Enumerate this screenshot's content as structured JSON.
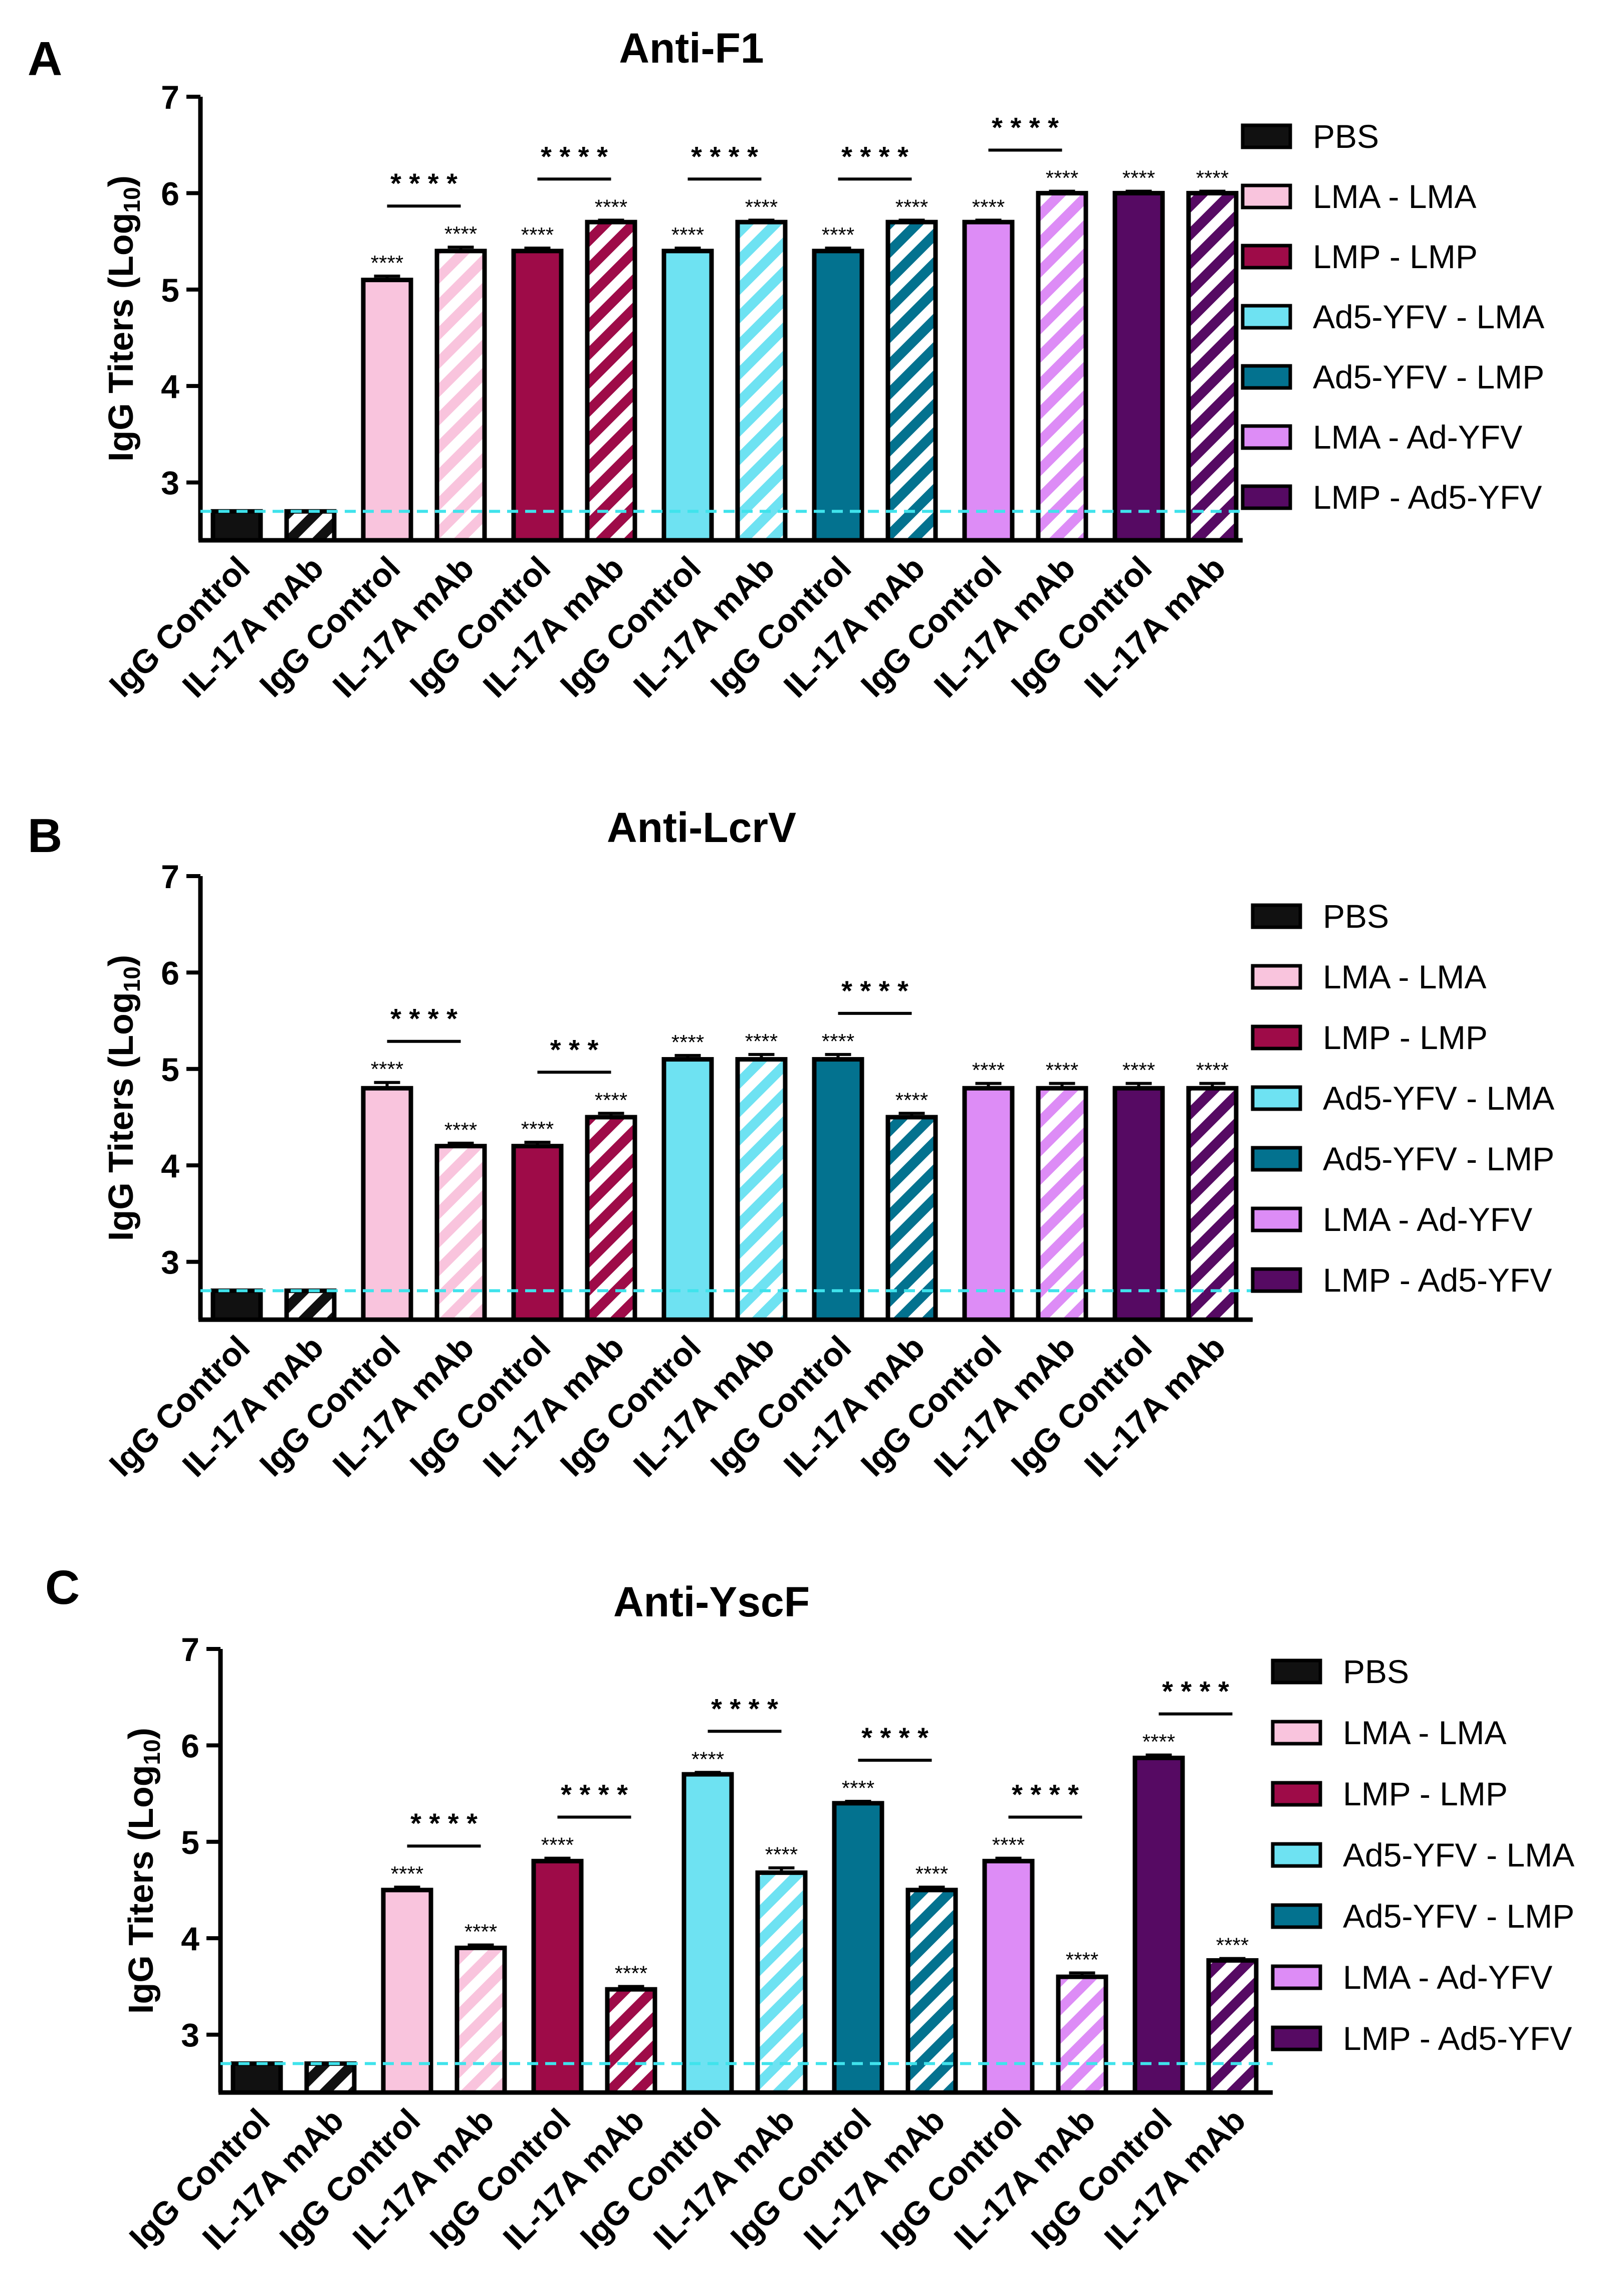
{
  "colors": {
    "pbs": "#111111",
    "lma_lma": "#f9c4dd",
    "lmp_lmp": "#9e0b48",
    "ad5_lma": "#6ee2f2",
    "ad5_lmp": "#03728f",
    "lma_ad": "#dd8cf6",
    "lmp_ad5": "#560a63",
    "limit_line": "#3fe3ec"
  },
  "legend_entries": [
    "PBS",
    "LMA - LMA",
    "LMP - LMP",
    "Ad5-YFV - LMA",
    "Ad5-YFV - LMP",
    "LMA - Ad-YFV",
    "LMP - Ad5-YFV"
  ],
  "categories": [
    "IgG Control",
    "IL-17A mAb",
    "IgG Control",
    "IL-17A mAb",
    "IgG Control",
    "IL-17A mAb",
    "IgG Control",
    "IL-17A mAb",
    "IgG Control",
    "IL-17A mAb",
    "IgG Control",
    "IL-17A mAb",
    "IgG Control",
    "IL-17A mAb"
  ],
  "chart_data": [
    {
      "type": "bar",
      "panel": "A",
      "title": "Anti-F1",
      "ylabel_main": "IgG Titers (Log",
      "ylabel_sub": "10",
      "ylabel_close": ")",
      "ylim": [
        2.4,
        7
      ],
      "yticks": [
        "3",
        "4",
        "5",
        "6",
        "7"
      ],
      "detection_limit": 2.7,
      "groups": [
        "PBS",
        "LMA - LMA",
        "LMP - LMP",
        "Ad5-YFV - LMA",
        "Ad5-YFV - LMP",
        "LMA - Ad-YFV",
        "LMP - Ad5-YFV"
      ],
      "series": [
        {
          "name": "IgG Control",
          "values": [
            2.7,
            5.1,
            5.4,
            5.4,
            5.4,
            5.7,
            6.0
          ],
          "errors": [
            0,
            0.04,
            0.03,
            0.03,
            0.03,
            0.02,
            0.02
          ]
        },
        {
          "name": "IL-17A mAb",
          "values": [
            2.7,
            5.4,
            5.7,
            5.7,
            5.7,
            6.0,
            6.0
          ],
          "errors": [
            0,
            0.04,
            0.02,
            0.02,
            0.02,
            0.02,
            0.02
          ]
        }
      ],
      "bar_stars": [
        [
          "",
          ""
        ],
        [
          "****",
          "****"
        ],
        [
          "****",
          "****"
        ],
        [
          "****",
          "****"
        ],
        [
          "****",
          "****"
        ],
        [
          "****",
          "****"
        ],
        [
          "****",
          "****"
        ]
      ],
      "comparisons": [
        {
          "group": 1,
          "label": "* * * *"
        },
        {
          "group": 2,
          "label": "* * * *"
        },
        {
          "group": 3,
          "label": "* * * *"
        },
        {
          "group": 4,
          "label": "* * * *"
        },
        {
          "group": 5,
          "label": "* * * *"
        }
      ]
    },
    {
      "type": "bar",
      "panel": "B",
      "title": "Anti-LcrV",
      "ylabel_main": "IgG Titers (Log",
      "ylabel_sub": "10",
      "ylabel_close": ")",
      "ylim": [
        2.4,
        7
      ],
      "yticks": [
        "3",
        "4",
        "5",
        "6",
        "7"
      ],
      "detection_limit": 2.7,
      "groups": [
        "PBS",
        "LMA - LMA",
        "LMP - LMP",
        "Ad5-YFV - LMA",
        "Ad5-YFV - LMP",
        "LMA - Ad-YFV",
        "LMP - Ad5-YFV"
      ],
      "series": [
        {
          "name": "IgG Control",
          "values": [
            2.7,
            4.8,
            4.2,
            5.1,
            5.1,
            4.8,
            4.8
          ],
          "errors": [
            0,
            0.06,
            0.04,
            0.04,
            0.05,
            0.05,
            0.05
          ]
        },
        {
          "name": "IL-17A mAb",
          "values": [
            2.7,
            4.2,
            4.5,
            5.1,
            4.5,
            4.8,
            4.8
          ],
          "errors": [
            0,
            0.03,
            0.04,
            0.05,
            0.04,
            0.05,
            0.05
          ]
        }
      ],
      "bar_stars": [
        [
          "",
          ""
        ],
        [
          "****",
          "****"
        ],
        [
          "****",
          "****"
        ],
        [
          "****",
          "****"
        ],
        [
          "****",
          "****"
        ],
        [
          "****",
          "****"
        ],
        [
          "****",
          "****"
        ]
      ],
      "comparisons": [
        {
          "group": 1,
          "label": "* * * *"
        },
        {
          "group": 2,
          "label": "* * *"
        },
        {
          "group": 4,
          "label": "* * * *"
        }
      ]
    },
    {
      "type": "bar",
      "panel": "C",
      "title": "Anti-YscF",
      "ylabel_main": "IgG Titers (Log",
      "ylabel_sub": "10",
      "ylabel_close": ")",
      "ylim": [
        2.4,
        7
      ],
      "yticks": [
        "3",
        "4",
        "5",
        "6",
        "7"
      ],
      "detection_limit": 2.7,
      "groups": [
        "PBS",
        "LMA - LMA",
        "LMP - LMP",
        "Ad5-YFV - LMA",
        "Ad5-YFV - LMP",
        "LMA - Ad-YFV",
        "LMP - Ad5-YFV"
      ],
      "series": [
        {
          "name": "IgG Control",
          "values": [
            2.7,
            4.5,
            4.8,
            5.7,
            5.4,
            4.8,
            5.87
          ],
          "errors": [
            0,
            0.03,
            0.03,
            0.02,
            0.02,
            0.03,
            0.03
          ]
        },
        {
          "name": "IL-17A mAb",
          "values": [
            2.7,
            3.9,
            3.47,
            4.68,
            4.5,
            3.6,
            3.77
          ],
          "errors": [
            0,
            0.03,
            0.03,
            0.05,
            0.03,
            0.04,
            0.02
          ]
        }
      ],
      "bar_stars": [
        [
          "",
          ""
        ],
        [
          "****",
          "****"
        ],
        [
          "****",
          "****"
        ],
        [
          "****",
          "****"
        ],
        [
          "****",
          "****"
        ],
        [
          "****",
          "****"
        ],
        [
          "****",
          "****"
        ]
      ],
      "comparisons": [
        {
          "group": 1,
          "label": "* * * *"
        },
        {
          "group": 2,
          "label": "* * * *"
        },
        {
          "group": 3,
          "label": "* * * *"
        },
        {
          "group": 4,
          "label": "* * * *"
        },
        {
          "group": 5,
          "label": "* * * *"
        },
        {
          "group": 6,
          "label": "* * * *"
        }
      ]
    }
  ]
}
